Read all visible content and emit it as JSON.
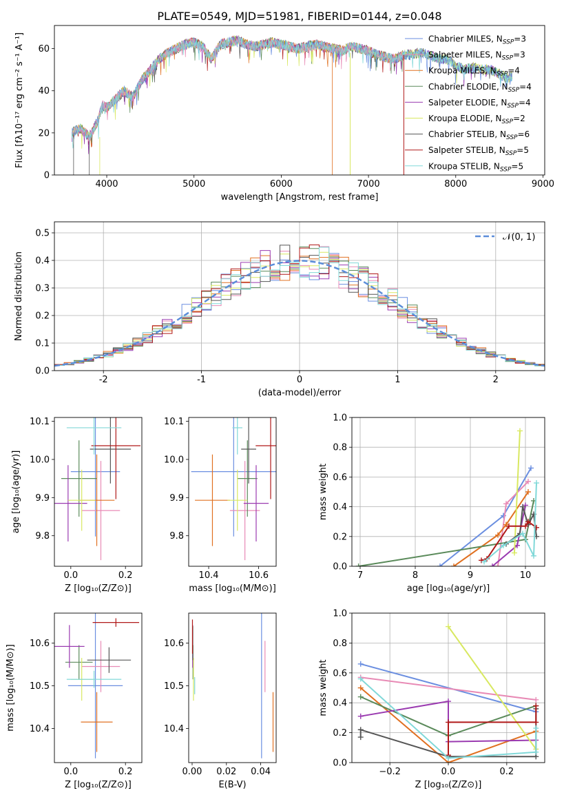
{
  "figure_title": "PLATE=0549, MJD=51981, FIBERID=0144, z=0.048",
  "colors": {
    "Chabrier MILES": "#6a8ee0",
    "Salpeter MILES": "#e88ab5",
    "Kroupa MILES": "#e07020",
    "Chabrier ELODIE": "#5a8a5a",
    "Salpeter ELODIE": "#9a3ab0",
    "Kroupa ELODIE": "#d8e860",
    "Chabrier STELIB": "#555555",
    "Salpeter STELIB": "#b01818",
    "Kroupa STELIB": "#80d8d8"
  },
  "chart_data": [
    {
      "type": "line",
      "panel": "spectrum",
      "xlabel": "wavelength [Angstrom, rest frame]",
      "ylabel": "Flux [fλ10⁻¹⁷ erg cm⁻² s⁻¹ A⁻¹]",
      "xlim": [
        3400,
        9020
      ],
      "ylim": [
        0,
        71
      ],
      "xticks": [
        4000,
        5000,
        6000,
        7000,
        8000,
        9000
      ],
      "yticks": [
        0,
        20,
        40,
        60
      ],
      "legend_position": "top-right",
      "spectrum_x": [
        3600,
        3700,
        3800,
        3900,
        3950,
        4000,
        4100,
        4200,
        4300,
        4400,
        4500,
        4600,
        4700,
        4800,
        4900,
        5000,
        5100,
        5200,
        5300,
        5400,
        5500,
        5600,
        5700,
        5800,
        5900,
        6000,
        6100,
        6200,
        6300,
        6400,
        6500,
        6600,
        6700,
        6800,
        6900,
        7000,
        7100,
        7200,
        7300,
        7400,
        7500,
        7600,
        7700,
        7800,
        7900,
        8000,
        8100,
        8200,
        8300,
        8400,
        8500,
        8600,
        8650
      ],
      "spectrum_y": [
        20,
        22,
        18,
        26,
        33,
        32,
        36,
        40,
        37,
        45,
        50,
        55,
        58,
        60,
        62,
        63,
        61,
        55,
        62,
        63,
        64,
        62,
        61,
        62,
        63,
        62,
        61,
        60,
        61,
        62,
        61,
        60,
        59,
        61,
        60,
        59,
        57,
        56,
        55,
        57,
        57,
        58,
        57,
        55,
        55,
        52,
        50,
        51,
        50,
        50,
        48,
        46,
        47
      ],
      "series": [
        {
          "name": "Chabrier MILES",
          "nssp": "3"
        },
        {
          "name": "Salpeter MILES",
          "nssp": "3"
        },
        {
          "name": "Kroupa MILES",
          "nssp": "4"
        },
        {
          "name": "Chabrier ELODIE",
          "nssp": "4"
        },
        {
          "name": "Salpeter ELODIE",
          "nssp": "4"
        },
        {
          "name": "Kroupa ELODIE",
          "nssp": "2"
        },
        {
          "name": "Chabrier STELIB",
          "nssp": "6"
        },
        {
          "name": "Salpeter STELIB",
          "nssp": "5"
        },
        {
          "name": "Kroupa STELIB",
          "nssp": "5"
        }
      ]
    },
    {
      "type": "bar",
      "panel": "residual-histograms",
      "xlabel": "(data-model)/error",
      "ylabel": "Normed distribution",
      "xlim": [
        -2.5,
        2.5
      ],
      "ylim": [
        0,
        0.54
      ],
      "xticks": [
        -2,
        -1,
        0,
        1,
        2
      ],
      "yticks": [
        0.0,
        0.1,
        0.2,
        0.3,
        0.4,
        0.5
      ],
      "legend_position": "top-right",
      "legend_label": "𝒩(0, 1)",
      "grid": true
    },
    {
      "type": "scatter",
      "panel": "age-vs-Z",
      "xlabel": "Z [log₁₀(Z/Z⊙)]",
      "ylabel": "age  [log₁₀(age/yr)]",
      "xlim": [
        -0.06,
        0.26
      ],
      "ylim": [
        9.72,
        10.11
      ],
      "xticks": [
        0.0,
        0.2
      ],
      "yticks": [
        9.8,
        9.9,
        10.0,
        10.1
      ],
      "points": [
        {
          "series": "Chabrier MILES",
          "x": 0.09,
          "y": 9.968,
          "xerr": 0.09,
          "yerr": 0.17
        },
        {
          "series": "Salpeter MILES",
          "x": 0.11,
          "y": 9.866,
          "xerr": 0.07,
          "yerr": 0.13
        },
        {
          "series": "Kroupa MILES",
          "x": 0.095,
          "y": 9.893,
          "xerr": 0.065,
          "yerr": 0.12
        },
        {
          "series": "Chabrier ELODIE",
          "x": 0.03,
          "y": 9.95,
          "xerr": 0.065,
          "yerr": 0.1
        },
        {
          "series": "Salpeter ELODIE",
          "x": -0.01,
          "y": 9.885,
          "xerr": 0.07,
          "yerr": 0.1
        },
        {
          "series": "Kroupa ELODIE",
          "x": 0.04,
          "y": 9.893,
          "xerr": 0.05,
          "yerr": 0.08
        },
        {
          "series": "Chabrier STELIB",
          "x": 0.145,
          "y": 10.027,
          "xerr": 0.075,
          "yerr": 0.09
        },
        {
          "series": "Salpeter STELIB",
          "x": 0.165,
          "y": 10.036,
          "xerr": 0.09,
          "yerr": 0.14
        },
        {
          "series": "Kroupa STELIB",
          "x": 0.085,
          "y": 10.083,
          "xerr": 0.1,
          "yerr": 0.07
        }
      ]
    },
    {
      "type": "scatter",
      "panel": "age-vs-mass",
      "xlabel": "mass [log₁₀(M/M⊙)]",
      "ylabel": "",
      "xlim": [
        10.32,
        10.67
      ],
      "ylim": [
        9.72,
        10.11
      ],
      "xticks": [
        10.4,
        10.6
      ],
      "yticks": [
        9.8,
        9.9,
        10.0,
        10.1
      ],
      "points": [
        {
          "series": "Chabrier MILES",
          "x": 10.5,
          "y": 9.968,
          "xerr": 0.17,
          "yerr": 0.17
        },
        {
          "series": "Salpeter MILES",
          "x": 10.545,
          "y": 9.866,
          "xerr": 0.06,
          "yerr": 0.13
        },
        {
          "series": "Kroupa MILES",
          "x": 10.415,
          "y": 9.893,
          "xerr": 0.07,
          "yerr": 0.12
        },
        {
          "series": "Chabrier ELODIE",
          "x": 10.555,
          "y": 9.95,
          "xerr": 0.04,
          "yerr": 0.1
        },
        {
          "series": "Salpeter ELODIE",
          "x": 10.59,
          "y": 9.885,
          "xerr": 0.05,
          "yerr": 0.1
        },
        {
          "series": "Kroupa ELODIE",
          "x": 10.515,
          "y": 9.893,
          "xerr": 0.04,
          "yerr": 0.08
        },
        {
          "series": "Chabrier STELIB",
          "x": 10.56,
          "y": 10.027,
          "xerr": 0.03,
          "yerr": 0.09
        },
        {
          "series": "Salpeter STELIB",
          "x": 10.648,
          "y": 10.036,
          "xerr": 0.06,
          "yerr": 0.14
        },
        {
          "series": "Kroupa STELIB",
          "x": 10.515,
          "y": 10.083,
          "xerr": 0.02,
          "yerr": 0.07
        }
      ]
    },
    {
      "type": "line",
      "panel": "mass-weight-vs-age",
      "xlabel": "age  [log₁₀(age/yr)]",
      "ylabel": "mass weight",
      "xlim": [
        6.85,
        10.35
      ],
      "ylim": [
        0,
        1
      ],
      "xticks": [
        7,
        8,
        9,
        10
      ],
      "yticks": [
        0.0,
        0.2,
        0.4,
        0.6,
        0.8,
        1.0
      ],
      "grid": true,
      "series": [
        {
          "name": "Chabrier MILES",
          "x": [
            8.45,
            9.6,
            10.1
          ],
          "y": [
            0.0,
            0.34,
            0.66
          ]
        },
        {
          "name": "Salpeter MILES",
          "x": [
            9.5,
            9.65,
            10.05
          ],
          "y": [
            0.0,
            0.42,
            0.57
          ]
        },
        {
          "name": "Kroupa MILES",
          "x": [
            8.7,
            9.5,
            9.65,
            10.05
          ],
          "y": [
            0.0,
            0.21,
            0.28,
            0.5
          ]
        },
        {
          "name": "Chabrier ELODIE",
          "x": [
            6.97,
            10.0,
            10.15
          ],
          "y": [
            0.0,
            0.18,
            0.44
          ]
        },
        {
          "name": "Salpeter ELODIE",
          "x": [
            9.4,
            9.85,
            10.0
          ],
          "y": [
            0.0,
            0.14,
            0.41
          ]
        },
        {
          "name": "Kroupa ELODIE",
          "x": [
            9.8,
            9.9
          ],
          "y": [
            0.09,
            0.91
          ]
        },
        {
          "name": "Chabrier STELIB",
          "x": [
            9.65,
            9.9,
            9.95,
            10.05,
            10.15,
            10.2
          ],
          "y": [
            0.15,
            0.22,
            0.4,
            0.28,
            0.35,
            0.2
          ]
        },
        {
          "name": "Salpeter STELIB",
          "x": [
            9.2,
            9.3,
            9.7,
            10.0,
            10.05,
            10.2
          ],
          "y": [
            0.04,
            0.05,
            0.27,
            0.27,
            0.3,
            0.26
          ]
        },
        {
          "name": "Kroupa STELIB",
          "x": [
            9.25,
            9.6,
            9.95,
            10.15,
            10.2
          ],
          "y": [
            0.03,
            0.14,
            0.22,
            0.07,
            0.56
          ]
        }
      ]
    },
    {
      "type": "scatter",
      "panel": "mass-vs-Z",
      "xlabel": "Z [log₁₀(Z/Z⊙)]",
      "ylabel": "mass [log₁₀(M/M⊙)]",
      "xlim": [
        -0.06,
        0.26
      ],
      "ylim": [
        10.32,
        10.67
      ],
      "xticks": [
        0.0,
        0.2
      ],
      "yticks": [
        10.4,
        10.5,
        10.6
      ],
      "points": [
        {
          "series": "Chabrier MILES",
          "x": 0.09,
          "y": 10.5,
          "xerr": 0.1,
          "yerr": 0.17
        },
        {
          "series": "Salpeter MILES",
          "x": 0.11,
          "y": 10.545,
          "xerr": 0.07,
          "yerr": 0.06
        },
        {
          "series": "Kroupa MILES",
          "x": 0.095,
          "y": 10.415,
          "xerr": 0.058,
          "yerr": 0.07
        },
        {
          "series": "Chabrier ELODIE",
          "x": 0.03,
          "y": 10.555,
          "xerr": 0.05,
          "yerr": 0.04
        },
        {
          "series": "Salpeter ELODIE",
          "x": -0.005,
          "y": 10.592,
          "xerr": 0.055,
          "yerr": 0.05
        },
        {
          "series": "Kroupa ELODIE",
          "x": 0.04,
          "y": 10.515,
          "xerr": 0.04,
          "yerr": 0.05
        },
        {
          "series": "Chabrier STELIB",
          "x": 0.14,
          "y": 10.56,
          "xerr": 0.08,
          "yerr": 0.03
        },
        {
          "series": "Salpeter STELIB",
          "x": 0.165,
          "y": 10.648,
          "xerr": 0.085,
          "yerr": 0.01
        },
        {
          "series": "Kroupa STELIB",
          "x": 0.085,
          "y": 10.515,
          "xerr": 0.1,
          "yerr": 0.02
        }
      ]
    },
    {
      "type": "scatter",
      "panel": "mass-vs-EBV",
      "xlabel": "E(B-V)",
      "ylabel": "",
      "xlim": [
        -0.002,
        0.049
      ],
      "ylim": [
        10.32,
        10.67
      ],
      "xticks": [
        0.0,
        0.02,
        0.04
      ],
      "yticks": [
        10.4,
        10.5,
        10.6
      ],
      "points": [
        {
          "series": "Chabrier MILES",
          "x": 0.0405,
          "y": 10.5,
          "yerr": 0.17
        },
        {
          "series": "Salpeter MILES",
          "x": 0.0425,
          "y": 10.545,
          "yerr": 0.06
        },
        {
          "series": "Kroupa MILES",
          "x": 0.0472,
          "y": 10.415,
          "yerr": 0.07
        },
        {
          "series": "Chabrier ELODIE",
          "x": 0.0005,
          "y": 10.555,
          "yerr": 0.04
        },
        {
          "series": "Salpeter ELODIE",
          "x": 0.0003,
          "y": 10.592,
          "yerr": 0.05
        },
        {
          "series": "Kroupa ELODIE",
          "x": 0.0008,
          "y": 10.515,
          "yerr": 0.05
        },
        {
          "series": "Chabrier STELIB",
          "x": 0.0004,
          "y": 10.6,
          "yerr": 0.04
        },
        {
          "series": "Salpeter STELIB",
          "x": 0.0002,
          "y": 10.615,
          "yerr": 0.04
        },
        {
          "series": "Kroupa STELIB",
          "x": 0.0015,
          "y": 10.5,
          "yerr": 0.02
        }
      ]
    },
    {
      "type": "line",
      "panel": "mass-weight-vs-Z",
      "xlabel": "Z [log₁₀(Z/Z⊙)]",
      "ylabel": "mass weight",
      "xlim": [
        -0.33,
        0.33
      ],
      "ylim": [
        0,
        1
      ],
      "xticks": [
        -0.2,
        0.0,
        0.2
      ],
      "yticks": [
        0.0,
        0.2,
        0.4,
        0.6,
        0.8,
        1.0
      ],
      "grid": true,
      "series": [
        {
          "name": "Chabrier MILES",
          "x": [
            -0.3,
            0.3
          ],
          "y": [
            0.66,
            0.34
          ]
        },
        {
          "name": "Salpeter MILES",
          "x": [
            -0.3,
            0.3
          ],
          "y": [
            0.57,
            0.42
          ]
        },
        {
          "name": "Kroupa MILES",
          "x": [
            -0.3,
            0.0,
            0.3
          ],
          "y": [
            0.5,
            0.0,
            0.21
          ]
        },
        {
          "name": "Chabrier ELODIE",
          "x": [
            -0.3,
            0.0,
            0.3
          ],
          "y": [
            0.44,
            0.18,
            0.38
          ]
        },
        {
          "name": "Salpeter ELODIE",
          "x": [
            -0.3,
            0.0,
            0.0,
            0.3
          ],
          "y": [
            0.31,
            0.41,
            0.14,
            0.15
          ]
        },
        {
          "name": "Kroupa ELODIE",
          "x": [
            0.0,
            0.3
          ],
          "y": [
            0.91,
            0.09
          ]
        },
        {
          "name": "Chabrier STELIB",
          "x": [
            -0.3,
            -0.3,
            0.0,
            0.3,
            0.3
          ],
          "y": [
            0.17,
            0.22,
            0.04,
            0.04,
            0.36
          ]
        },
        {
          "name": "Salpeter STELIB",
          "x": [
            0.0,
            0.0,
            0.3,
            0.3
          ],
          "y": [
            0.05,
            0.27,
            0.27,
            0.38
          ]
        },
        {
          "name": "Kroupa STELIB",
          "x": [
            -0.3,
            0.0,
            0.3,
            0.3
          ],
          "y": [
            0.56,
            0.03,
            0.07,
            0.23
          ]
        }
      ]
    }
  ]
}
